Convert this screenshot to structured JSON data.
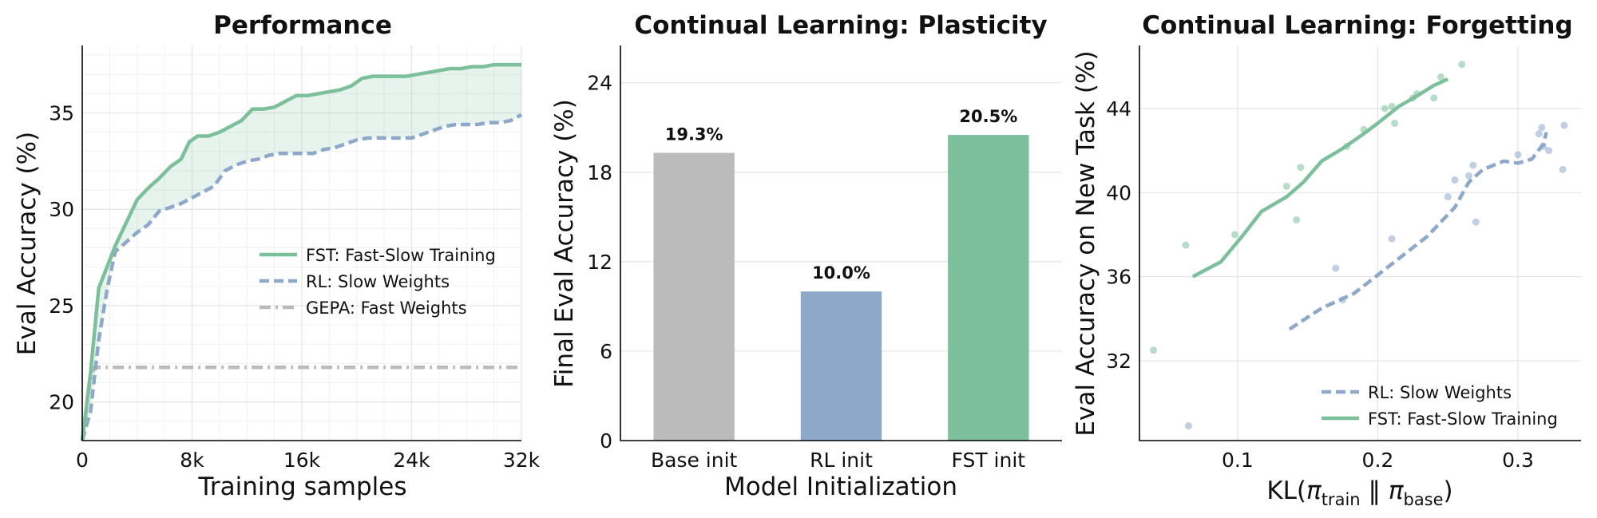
{
  "chart_data": [
    {
      "type": "line",
      "title": "Performance",
      "xlabel": "Training samples",
      "ylabel": "Eval Accuracy (%)",
      "xlim": [
        0,
        32000
      ],
      "ylim": [
        18,
        38.5
      ],
      "x_ticks": [
        0,
        8000,
        16000,
        24000,
        32000
      ],
      "x_tick_labels": [
        "0",
        "8k",
        "16k",
        "24k",
        "32k"
      ],
      "y_ticks": [
        20,
        25,
        30,
        35
      ],
      "y_tick_labels": [
        "20",
        "25",
        "30",
        "35"
      ],
      "grid": true,
      "legend_position": "center-right",
      "shaded_region": "between FST and RL curves",
      "series": [
        {
          "name": "FST: Fast-Slow Training",
          "color": "#7bbf9b",
          "style": "solid",
          "x": [
            0,
            600,
            1200,
            1800,
            2400,
            3200,
            4000,
            4800,
            5600,
            6400,
            7200,
            7800,
            8400,
            9200,
            10000,
            10800,
            11600,
            12400,
            13200,
            14000,
            14800,
            15600,
            16400,
            17200,
            18000,
            18800,
            19600,
            20400,
            21200,
            22000,
            22800,
            23600,
            24400,
            25200,
            26000,
            26800,
            27600,
            28400,
            29200,
            30000,
            30800,
            31600,
            32000
          ],
          "y": [
            18,
            21.5,
            25.9,
            27,
            28.1,
            29.3,
            30.5,
            31.1,
            31.6,
            32.2,
            32.6,
            33.5,
            33.8,
            33.8,
            34.0,
            34.3,
            34.6,
            35.2,
            35.2,
            35.3,
            35.6,
            35.9,
            35.9,
            36.0,
            36.1,
            36.2,
            36.4,
            36.8,
            36.9,
            36.9,
            36.9,
            36.9,
            37.0,
            37.1,
            37.2,
            37.3,
            37.3,
            37.4,
            37.4,
            37.5,
            37.5,
            37.5,
            37.5
          ]
        },
        {
          "name": "RL: Slow Weights",
          "color": "#8da8c8",
          "style": "dashed",
          "x": [
            0,
            600,
            1200,
            1800,
            2400,
            3200,
            4000,
            4800,
            5600,
            6400,
            7200,
            8000,
            8800,
            9600,
            10400,
            11200,
            12000,
            12800,
            13600,
            14400,
            15200,
            16000,
            16800,
            17600,
            18400,
            19200,
            20000,
            20800,
            21600,
            22400,
            23200,
            24000,
            24800,
            25600,
            26400,
            27200,
            28000,
            28800,
            29600,
            30400,
            31200,
            32000
          ],
          "y": [
            18,
            19.5,
            23.2,
            25.8,
            27.8,
            28.3,
            28.8,
            29.2,
            29.9,
            30.1,
            30.3,
            30.6,
            30.9,
            31.2,
            32.0,
            32.3,
            32.5,
            32.6,
            32.8,
            32.9,
            32.9,
            32.9,
            32.9,
            33.1,
            33.2,
            33.4,
            33.6,
            33.7,
            33.7,
            33.7,
            33.7,
            33.7,
            33.9,
            34.1,
            34.3,
            34.4,
            34.4,
            34.4,
            34.5,
            34.5,
            34.6,
            34.9
          ]
        },
        {
          "name": "GEPA: Fast Weights",
          "color": "#bbbbbb",
          "style": "dashdot",
          "x": [
            0,
            300,
            600,
            900,
            32000
          ],
          "y": [
            18,
            19.6,
            21.2,
            21.8,
            21.8
          ]
        }
      ]
    },
    {
      "type": "bar",
      "title": "Continual Learning: Plasticity",
      "xlabel": "Model Initialization",
      "ylabel": "Final Eval Accuracy (%)",
      "ylim": [
        0,
        26.5
      ],
      "y_ticks": [
        0,
        6,
        12,
        18,
        24
      ],
      "y_tick_labels": [
        "0",
        "6",
        "12",
        "18",
        "24"
      ],
      "grid": true,
      "categories": [
        "Base init",
        "RL init",
        "FST init"
      ],
      "values": [
        19.3,
        10.0,
        20.5
      ],
      "data_labels": [
        "19.3%",
        "10.0%",
        "20.5%"
      ],
      "colors": [
        "#bbbbbb",
        "#8da8c8",
        "#7bbf9b"
      ]
    },
    {
      "type": "scatter",
      "title": "Continual Learning: Forgetting",
      "xlabel": "KL(π_train ‖ π_base)",
      "ylabel": "Eval Accuracy on New Task (%)",
      "xlim": [
        0.03,
        0.345
      ],
      "ylim": [
        28.2,
        47.0
      ],
      "x_ticks": [
        0.1,
        0.2,
        0.3
      ],
      "x_tick_labels": [
        "0.1",
        "0.2",
        "0.3"
      ],
      "y_ticks": [
        32,
        36,
        40,
        44
      ],
      "y_tick_labels": [
        "32",
        "36",
        "40",
        "44"
      ],
      "grid": true,
      "legend_position": "bottom-right",
      "series": [
        {
          "name": "RL: Slow Weights",
          "color": "#8da8c8",
          "style": "dashed",
          "line_x": [
            0.137,
            0.16,
            0.183,
            0.21,
            0.235,
            0.255,
            0.265,
            0.275,
            0.29,
            0.3,
            0.31,
            0.318,
            0.32,
            0.318
          ],
          "line_y": [
            33.5,
            34.5,
            35.2,
            36.6,
            37.9,
            39.3,
            40.5,
            41.1,
            41.5,
            41.4,
            41.6,
            42.3,
            42.8,
            42.2
          ],
          "points": [
            [
              0.065,
              28.9
            ],
            [
              0.17,
              36.4
            ],
            [
              0.175,
              34.9
            ],
            [
              0.21,
              37.8
            ],
            [
              0.25,
              39.8
            ],
            [
              0.255,
              40.6
            ],
            [
              0.265,
              40.8
            ],
            [
              0.268,
              41.3
            ],
            [
              0.27,
              38.6
            ],
            [
              0.3,
              41.8
            ],
            [
              0.315,
              42.8
            ],
            [
              0.317,
              43.1
            ],
            [
              0.322,
              42.0
            ],
            [
              0.332,
              41.1
            ],
            [
              0.333,
              43.2
            ],
            [
              0.318,
              42.2
            ]
          ]
        },
        {
          "name": "FST: Fast-Slow Training",
          "color": "#7bbf9b",
          "style": "solid",
          "line_x": [
            0.068,
            0.088,
            0.103,
            0.117,
            0.135,
            0.147,
            0.16,
            0.175,
            0.19,
            0.2,
            0.215,
            0.228,
            0.24,
            0.25
          ],
          "line_y": [
            36.0,
            36.7,
            37.9,
            39.1,
            39.8,
            40.5,
            41.5,
            42.1,
            42.8,
            43.3,
            44.1,
            44.6,
            45.1,
            45.4
          ],
          "points": [
            [
              0.04,
              32.5
            ],
            [
              0.063,
              37.5
            ],
            [
              0.098,
              38.0
            ],
            [
              0.135,
              40.3
            ],
            [
              0.142,
              38.7
            ],
            [
              0.145,
              41.2
            ],
            [
              0.178,
              42.2
            ],
            [
              0.19,
              43.0
            ],
            [
              0.205,
              44.0
            ],
            [
              0.21,
              44.1
            ],
            [
              0.212,
              43.3
            ],
            [
              0.225,
              44.5
            ],
            [
              0.228,
              44.7
            ],
            [
              0.24,
              44.5
            ],
            [
              0.245,
              45.5
            ],
            [
              0.26,
              46.1
            ]
          ]
        }
      ]
    }
  ]
}
